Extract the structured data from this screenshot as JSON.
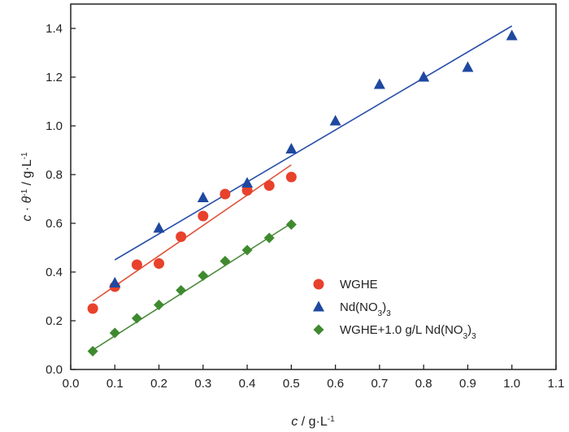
{
  "chart_data": {
    "type": "scatter",
    "title": "",
    "xlabel_parts": [
      {
        "t": "c",
        "i": true
      },
      {
        "t": " / g·L"
      },
      {
        "sup": "-1"
      }
    ],
    "ylabel_parts": [
      {
        "t": "c",
        "i": true
      },
      {
        "t": " · "
      },
      {
        "t": "θ",
        "i": true
      },
      {
        "sup": "-1"
      },
      {
        "t": " / g·L"
      },
      {
        "sup": "-1"
      }
    ],
    "xlim": [
      0,
      1.1
    ],
    "ylim": [
      0,
      1.5
    ],
    "xticks": [
      "0.0",
      "0.1",
      "0.2",
      "0.3",
      "0.4",
      "0.5",
      "0.6",
      "0.7",
      "0.8",
      "0.9",
      "1.0",
      "1.1"
    ],
    "yticks": [
      "0.0",
      "0.2",
      "0.4",
      "0.6",
      "0.8",
      "1.0",
      "1.2",
      "1.4"
    ],
    "legend_position": "bottom-right",
    "series": [
      {
        "name": "WGHE",
        "label_parts": [
          {
            "t": "WGHE"
          }
        ],
        "marker": "circle",
        "color": "#e8412c",
        "line_color": "#e0533a",
        "x": [
          0.05,
          0.1,
          0.15,
          0.2,
          0.25,
          0.3,
          0.35,
          0.4,
          0.45,
          0.5
        ],
        "y": [
          0.25,
          0.34,
          0.43,
          0.435,
          0.545,
          0.63,
          0.72,
          0.735,
          0.755,
          0.79
        ],
        "fit": {
          "x": [
            0.05,
            0.5
          ],
          "y": [
            0.28,
            0.84
          ]
        }
      },
      {
        "name": "Nd(NO3)3",
        "label_parts": [
          {
            "t": "Nd(NO"
          },
          {
            "sub": "3"
          },
          {
            "t": ")"
          },
          {
            "sub": "3"
          }
        ],
        "marker": "triangle",
        "color": "#1f48a0",
        "line_color": "#2a4fa8",
        "x": [
          0.1,
          0.2,
          0.3,
          0.4,
          0.5,
          0.6,
          0.7,
          0.8,
          0.9,
          1.0
        ],
        "y": [
          0.355,
          0.58,
          0.705,
          0.765,
          0.905,
          1.02,
          1.17,
          1.2,
          1.24,
          1.37
        ],
        "fit": {
          "x": [
            0.1,
            1.0
          ],
          "y": [
            0.45,
            1.41
          ]
        }
      },
      {
        "name": "WGHE+1.0 g/L Nd(NO3)3",
        "label_parts": [
          {
            "t": "WGHE+1.0 g/L Nd(NO"
          },
          {
            "sub": "3"
          },
          {
            "t": ")"
          },
          {
            "sub": "3"
          }
        ],
        "marker": "diamond",
        "color": "#3f8a2f",
        "line_color": "#4a8a3a",
        "x": [
          0.05,
          0.1,
          0.15,
          0.2,
          0.25,
          0.3,
          0.35,
          0.4,
          0.45,
          0.5
        ],
        "y": [
          0.075,
          0.15,
          0.21,
          0.265,
          0.325,
          0.385,
          0.445,
          0.49,
          0.54,
          0.595
        ],
        "fit": {
          "x": [
            0.05,
            0.5
          ],
          "y": [
            0.08,
            0.6
          ]
        }
      }
    ]
  }
}
